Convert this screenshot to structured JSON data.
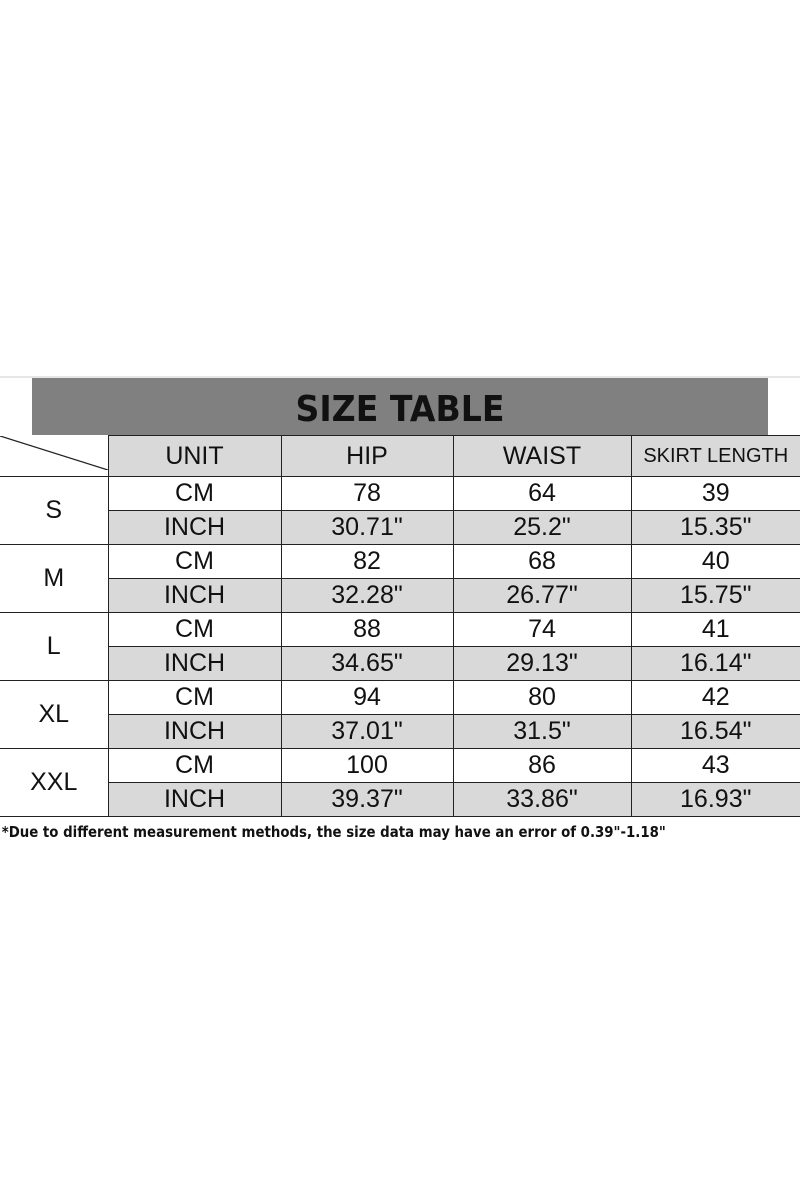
{
  "title": "SIZE TABLE",
  "headers": [
    "UNIT",
    "HIP",
    "WAIST",
    "SKIRT LENGTH"
  ],
  "rows": [
    {
      "size": "S",
      "cm": {
        "unit": "CM",
        "hip": "78",
        "waist": "64",
        "skirt": "39"
      },
      "inch": {
        "unit": "INCH",
        "hip": "30.71\"",
        "waist": "25.2\"",
        "skirt": "15.35\""
      }
    },
    {
      "size": "M",
      "cm": {
        "unit": "CM",
        "hip": "82",
        "waist": "68",
        "skirt": "40"
      },
      "inch": {
        "unit": "INCH",
        "hip": "32.28\"",
        "waist": "26.77\"",
        "skirt": "15.75\""
      }
    },
    {
      "size": "L",
      "cm": {
        "unit": "CM",
        "hip": "88",
        "waist": "74",
        "skirt": "41"
      },
      "inch": {
        "unit": "INCH",
        "hip": "34.65\"",
        "waist": "29.13\"",
        "skirt": "16.14\""
      }
    },
    {
      "size": "XL",
      "cm": {
        "unit": "CM",
        "hip": "94",
        "waist": "80",
        "skirt": "42"
      },
      "inch": {
        "unit": "INCH",
        "hip": "37.01\"",
        "waist": "31.5\"",
        "skirt": "16.54\""
      }
    },
    {
      "size": "XXL",
      "cm": {
        "unit": "CM",
        "hip": "100",
        "waist": "86",
        "skirt": "43"
      },
      "inch": {
        "unit": "INCH",
        "hip": "39.37\"",
        "waist": "33.86\"",
        "skirt": "16.93\""
      }
    }
  ],
  "note": "*Due to different measurement methods, the size data may have an error of 0.39\"-1.18\"",
  "colors": {
    "title_bg": "#808080",
    "cell_gray": "#d9d9d9"
  }
}
